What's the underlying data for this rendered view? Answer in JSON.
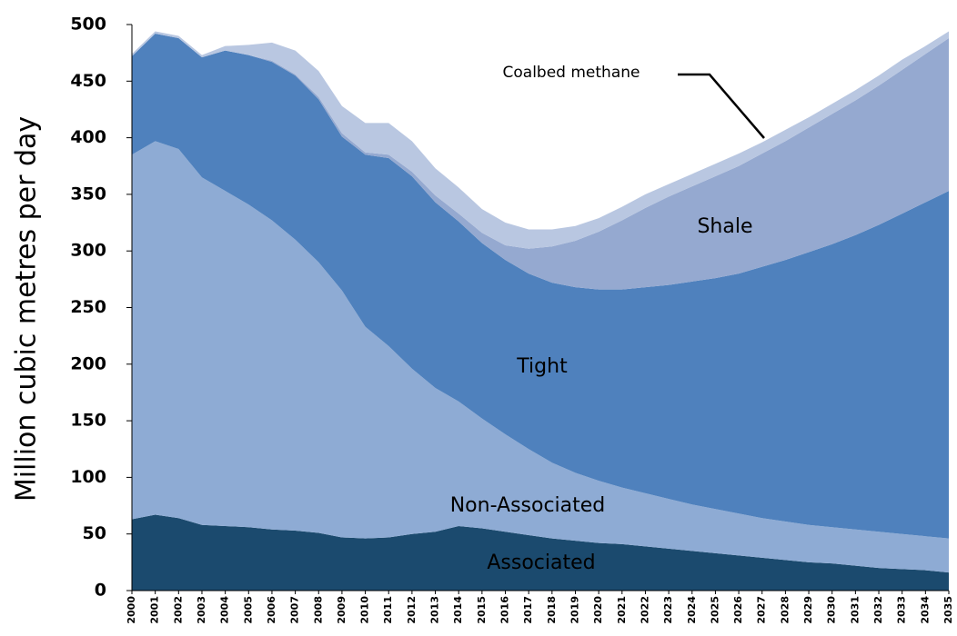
{
  "chart_data": {
    "type": "stacked-area",
    "y_label": "Million cubic metres per day",
    "x": [
      2000,
      2001,
      2002,
      2003,
      2004,
      2005,
      2006,
      2007,
      2008,
      2009,
      2010,
      2011,
      2012,
      2013,
      2014,
      2015,
      2016,
      2017,
      2018,
      2019,
      2020,
      2021,
      2022,
      2023,
      2024,
      2025,
      2026,
      2027,
      2028,
      2029,
      2030,
      2031,
      2032,
      2033,
      2034,
      2035
    ],
    "xlim": [
      2000,
      2035
    ],
    "ylim": [
      0,
      500
    ],
    "yticks": [
      0,
      50,
      100,
      150,
      200,
      250,
      300,
      350,
      400,
      450,
      500
    ],
    "grid": false,
    "series": [
      {
        "name": "Associated",
        "color": "#1b4a6e",
        "values": [
          63,
          67,
          64,
          58,
          57,
          56,
          54,
          53,
          51,
          47,
          46,
          47,
          50,
          52,
          57,
          55,
          52,
          49,
          46,
          44,
          42,
          41,
          39,
          37,
          35,
          33,
          31,
          29,
          27,
          25,
          24,
          22,
          20,
          19,
          18,
          16
        ]
      },
      {
        "name": "Non-Associated",
        "color": "#8eabd4",
        "values": [
          322,
          330,
          326,
          307,
          296,
          285,
          273,
          257,
          239,
          218,
          187,
          169,
          146,
          127,
          110,
          97,
          86,
          76,
          67,
          60,
          55,
          50,
          47,
          44,
          41,
          39,
          37,
          35,
          34,
          33,
          32,
          32,
          32,
          31,
          30,
          30
        ]
      },
      {
        "name": "Tight",
        "color": "#4f81bd",
        "values": [
          87,
          95,
          98,
          106,
          124,
          132,
          140,
          145,
          144,
          136,
          152,
          166,
          170,
          164,
          159,
          155,
          154,
          155,
          159,
          164,
          169,
          175,
          182,
          189,
          197,
          204,
          212,
          222,
          231,
          241,
          250,
          260,
          271,
          283,
          295,
          307
        ]
      },
      {
        "name": "Shale",
        "color": "#95a9d0",
        "values": [
          0,
          0,
          0,
          0,
          0,
          0,
          1,
          1,
          2,
          3,
          2,
          3,
          4,
          6,
          7,
          9,
          13,
          22,
          32,
          41,
          51,
          61,
          70,
          78,
          84,
          90,
          95,
          100,
          105,
          110,
          115,
          119,
          123,
          127,
          131,
          135
        ]
      },
      {
        "name": "Coalbed methane",
        "color": "#b9c7e1",
        "values": [
          2,
          2,
          2,
          2,
          4,
          9,
          16,
          21,
          23,
          24,
          26,
          28,
          27,
          24,
          23,
          21,
          20,
          17,
          15,
          13,
          12,
          12,
          12,
          11,
          11,
          11,
          11,
          10,
          10,
          9,
          9,
          9,
          9,
          9,
          7,
          6
        ]
      }
    ]
  }
}
